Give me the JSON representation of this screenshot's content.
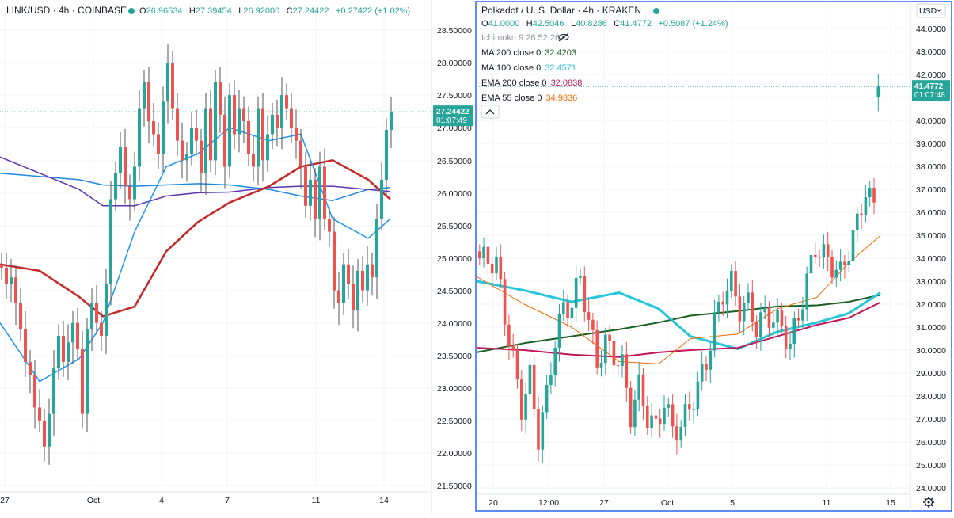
{
  "chart_data": [
    {
      "type": "candlestick",
      "title": "LINK/USD · 4h · COINBASE",
      "ohlc": {
        "o_label": "O",
        "o": "26.96534",
        "h_label": "H",
        "h": "27.39454",
        "l_label": "L",
        "l": "26.92000",
        "c_label": "C",
        "c": "27.24422",
        "chg": "+0.27422 (+1.02%)"
      },
      "y_ticks": [
        "28.50000",
        "28.00000",
        "27.50000",
        "27.00000",
        "26.50000",
        "26.00000",
        "25.50000",
        "25.00000",
        "24.50000",
        "24.00000",
        "23.50000",
        "23.00000",
        "22.50000",
        "22.00000",
        "21.50000"
      ],
      "ylim": [
        21.5,
        28.5
      ],
      "x_ticks": [
        "27",
        "Oct",
        "4",
        "7",
        "11",
        "14"
      ],
      "last_price": {
        "value": "27.24422",
        "countdown": "01:07:49"
      },
      "colors": {
        "up": "#26a69a",
        "down": "#ef5350",
        "badge": "#26a69a"
      },
      "series": [
        {
          "style": "blue-ma",
          "color": "#1e88e5",
          "values": [
            26.3,
            26.25,
            26.2,
            26.12,
            26.1,
            26.12,
            26.14,
            26.12,
            26.05,
            25.95,
            25.88,
            26.05,
            26.08
          ]
        },
        {
          "style": "purple-ma",
          "color": "#5e35b1",
          "values": [
            26.55,
            26.3,
            26.05,
            25.8,
            25.8,
            25.95,
            26.0,
            26.01,
            26.08,
            26.1,
            26.1,
            26.05,
            26.02
          ]
        },
        {
          "style": "red-ema",
          "color": "#c62828",
          "values": [
            24.9,
            24.8,
            24.4,
            24.1,
            24.25,
            25.1,
            25.55,
            25.85,
            26.1,
            26.4,
            26.5,
            26.2,
            25.9
          ]
        },
        {
          "style": "cyan-ma",
          "color": "#2196f3",
          "values": [
            24.0,
            23.1,
            23.45,
            24.0,
            25.4,
            26.4,
            26.6,
            27.0,
            26.8,
            26.9,
            25.6,
            25.3,
            25.6
          ]
        }
      ],
      "ma_x": [
        0,
        50,
        100,
        130,
        170,
        210,
        250,
        290,
        340,
        380,
        420,
        465,
        493
      ]
    },
    {
      "type": "candlestick",
      "title": "Polkadot / U. S. Dollar · 4h · KRAKEN",
      "ohlc": {
        "o_label": "O",
        "o": "41.0000",
        "h_label": "H",
        "h": "42.5046",
        "l_label": "L",
        "l": "40.8286",
        "c_label": "C",
        "c": "41.4772",
        "chg": "+0.5087 (+1.24%)"
      },
      "indicators": [
        {
          "name": "Ichimoku 9 26 52 26",
          "value": "",
          "color": "#9598a1"
        },
        {
          "name": "MA 200 close 0",
          "value": "32.4203",
          "color": "#1b5e20"
        },
        {
          "name": "MA 100 close 0",
          "value": "32.4571",
          "color": "#26c6da"
        },
        {
          "name": "EMA 200 close 0",
          "value": "32.0838",
          "color": "#c2185b"
        },
        {
          "name": "EMA 55 close 0",
          "value": "34.9836",
          "color": "#ef6c00"
        }
      ],
      "currency_selector": "USD",
      "y_ticks": [
        "44.0000",
        "43.0000",
        "42.0000",
        "41.0000",
        "40.0000",
        "39.0000",
        "38.0000",
        "37.0000",
        "36.0000",
        "35.0000",
        "34.0000",
        "33.0000",
        "32.0000",
        "31.0000",
        "30.0000",
        "29.0000",
        "28.0000",
        "27.0000",
        "26.0000",
        "25.0000",
        "24.0000"
      ],
      "ylim": [
        24,
        44
      ],
      "x_ticks": [
        "20",
        "12:00",
        "27",
        "Oct",
        "5",
        "11",
        "15"
      ],
      "last_price": {
        "value": "41.4772",
        "countdown": "01:07:48"
      },
      "colors": {
        "up": "#26a69a",
        "down": "#ef5350",
        "badge": "#26a69a"
      },
      "series": [
        {
          "style": "ma200",
          "color": "#1b5e20",
          "values": [
            29.9,
            30.3,
            30.6,
            30.9,
            31.2,
            31.5,
            31.7,
            31.9,
            31.95,
            32.1,
            32.4
          ]
        },
        {
          "style": "ma100",
          "color": "#26c6da",
          "values": [
            33.0,
            32.6,
            32.1,
            32.5,
            31.8,
            30.6,
            30.05,
            30.8,
            31.2,
            31.6,
            32.5
          ]
        },
        {
          "style": "ema200",
          "color": "#c2185b",
          "values": [
            30.1,
            30.0,
            29.8,
            29.7,
            29.9,
            30.0,
            30.1,
            30.6,
            31.1,
            31.4,
            32.08
          ]
        },
        {
          "style": "ema55",
          "color": "#ef6c00",
          "values": [
            33.2,
            32.0,
            31.0,
            29.5,
            29.4,
            30.5,
            30.7,
            31.8,
            32.3,
            33.8,
            34.98
          ]
        }
      ],
      "ma_x": [
        0,
        60,
        120,
        180,
        230,
        270,
        330,
        380,
        430,
        470,
        510
      ]
    }
  ]
}
